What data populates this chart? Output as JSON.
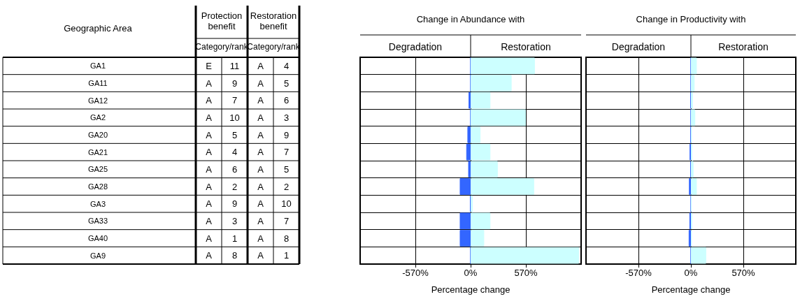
{
  "chart_data": [
    {
      "type": "other",
      "ylabel": "Geographic Area",
      "annotations": [
        "Protection benefit",
        "Category/rank",
        "Restoration benefit",
        "Category/rank"
      ],
      "y_categories": [
        "GA1",
        "GA11",
        "GA12",
        "GA2",
        "GA20",
        "GA21",
        "GA25",
        "GA28",
        "GA3",
        "GA33",
        "GA40",
        "GA9"
      ],
      "cell_labels": [
        [
          "E",
          "11",
          "A",
          "4"
        ],
        [
          "A",
          "9",
          "A",
          "5"
        ],
        [
          "A",
          "7",
          "A",
          "6"
        ],
        [
          "A",
          "10",
          "A",
          "3"
        ],
        [
          "A",
          "5",
          "A",
          "9"
        ],
        [
          "A",
          "4",
          "A",
          "7"
        ],
        [
          "A",
          "6",
          "A",
          "5"
        ],
        [
          "A",
          "2",
          "A",
          "2"
        ],
        [
          "A",
          "9",
          "A",
          "10"
        ],
        [
          "A",
          "3",
          "A",
          "7"
        ],
        [
          "A",
          "1",
          "A",
          "8"
        ],
        [
          "A",
          "8",
          "A",
          "1"
        ]
      ]
    },
    {
      "type": "bar",
      "orientation": "horizontal",
      "stacked": true,
      "title": "Change in Abundance with",
      "xlabel": "Percentage change",
      "categories": [
        null,
        null,
        null,
        null,
        null,
        null,
        null,
        null,
        null,
        null,
        null,
        null
      ],
      "series": [
        {
          "name": "Degradation",
          "color": "#3366ff",
          "values": [
            0,
            0,
            -21,
            0,
            -33,
            -45,
            -25,
            -112,
            -7,
            -112,
            -112,
            0
          ]
        },
        {
          "name": "Restoration",
          "color": "#ccffff",
          "values": [
            663,
            423,
            204,
            570,
            102,
            204,
            280,
            655,
            21,
            204,
            140,
            1119
          ]
        }
      ],
      "xlim": [
        -1140,
        1140
      ],
      "xticks": [
        {
          "value": -570,
          "label": "-570%"
        },
        {
          "value": 0,
          "label": "0%"
        },
        {
          "value": 570,
          "label": "570%"
        }
      ],
      "grid": true,
      "legend": false,
      "tick_labels": "x"
    },
    {
      "type": "bar",
      "orientation": "horizontal",
      "stacked": true,
      "title": "Change in Productivity with",
      "xlabel": "Percentage change",
      "categories": [
        null,
        null,
        null,
        null,
        null,
        null,
        null,
        null,
        null,
        null,
        null,
        null
      ],
      "series": [
        {
          "name": "Degradation",
          "color": "#3366ff",
          "values": [
            0,
            0,
            -5,
            0,
            -3,
            -14,
            -5,
            -21,
            0,
            -16,
            -24,
            0
          ]
        },
        {
          "name": "Restoration",
          "color": "#ccffff",
          "values": [
            64,
            40,
            21,
            47,
            10,
            14,
            28,
            64,
            7,
            14,
            10,
            166
          ]
        }
      ],
      "xlim": [
        -1140,
        1140
      ],
      "xticks": [
        {
          "value": -570,
          "label": "-570%"
        },
        {
          "value": 0,
          "label": "0%"
        },
        {
          "value": 570,
          "label": "570%"
        }
      ],
      "grid": true,
      "legend": false,
      "tick_labels": "x"
    }
  ]
}
